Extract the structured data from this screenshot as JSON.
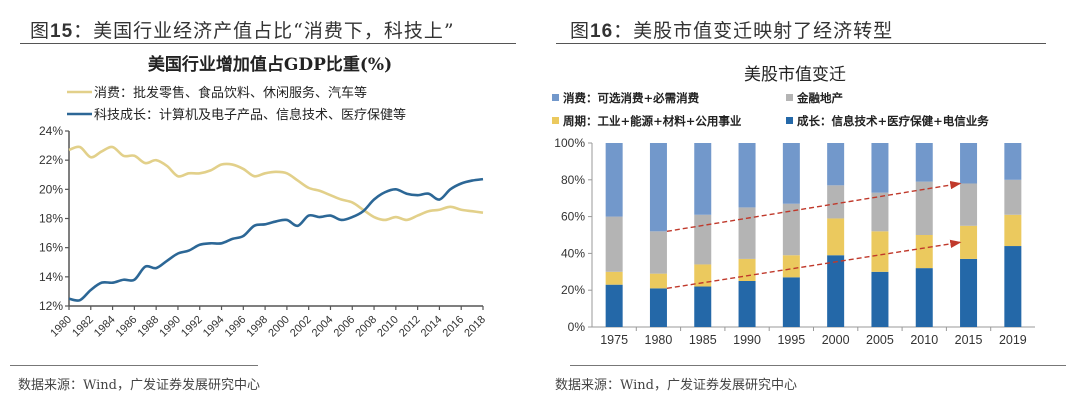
{
  "figures": [
    {
      "number": "15",
      "title_prefix": "图",
      "title_text": "：美国行业经济产值占比“消费下，科技上”",
      "source": "数据来源：Wind，广发证券发展研究中心"
    },
    {
      "number": "16",
      "title_prefix": "图",
      "title_text": "：美股市值变迁映射了经济转型",
      "source": "数据来源：Wind，广发证券发展研究中心"
    }
  ],
  "chart_data": [
    {
      "type": "line",
      "title": "美国行业增加值占GDP比重(%)",
      "xlabel": "",
      "ylabel": "",
      "ylim": [
        12,
        24
      ],
      "yticks": [
        "12%",
        "14%",
        "16%",
        "18%",
        "20%",
        "22%",
        "24%"
      ],
      "xticks": [
        "1980",
        "1982",
        "1984",
        "1986",
        "1988",
        "1990",
        "1992",
        "1994",
        "1996",
        "1998",
        "2000",
        "2002",
        "2004",
        "2006",
        "2008",
        "2010",
        "2012",
        "2014",
        "2016",
        "2018"
      ],
      "grid": false,
      "legend_position": "top-left",
      "x": [
        1980,
        1981,
        1982,
        1983,
        1984,
        1985,
        1986,
        1987,
        1988,
        1989,
        1990,
        1991,
        1992,
        1993,
        1994,
        1995,
        1996,
        1997,
        1998,
        1999,
        2000,
        2001,
        2002,
        2003,
        2004,
        2005,
        2006,
        2007,
        2008,
        2009,
        2010,
        2011,
        2012,
        2013,
        2014,
        2015,
        2016,
        2017,
        2018
      ],
      "series": [
        {
          "name": "消费：批发零售、食品饮料、休闲服务、汽车等",
          "color": "#E2D08A",
          "values": [
            22.7,
            22.9,
            22.2,
            22.6,
            22.9,
            22.3,
            22.3,
            21.8,
            22.0,
            21.6,
            20.9,
            21.1,
            21.1,
            21.3,
            21.7,
            21.7,
            21.4,
            20.9,
            21.1,
            21.2,
            21.1,
            20.6,
            20.1,
            19.9,
            19.6,
            19.3,
            19.1,
            18.6,
            18.1,
            17.9,
            18.1,
            17.9,
            18.2,
            18.5,
            18.6,
            18.8,
            18.6,
            18.5,
            18.4
          ]
        },
        {
          "name": "科技成长：计算机及电子产品、信息技术、医疗保健等",
          "color": "#2C6796",
          "values": [
            12.5,
            12.4,
            13.1,
            13.6,
            13.6,
            13.8,
            13.8,
            14.7,
            14.6,
            15.1,
            15.6,
            15.8,
            16.2,
            16.3,
            16.3,
            16.6,
            16.8,
            17.5,
            17.6,
            17.8,
            17.9,
            17.5,
            18.2,
            18.1,
            18.2,
            17.9,
            18.1,
            18.5,
            19.3,
            19.8,
            20.0,
            19.7,
            19.6,
            19.7,
            19.3,
            20.0,
            20.4,
            20.6,
            20.7
          ]
        }
      ]
    },
    {
      "type": "bar",
      "stacked": true,
      "title": "美股市值变迁",
      "xlabel": "",
      "ylabel": "",
      "ylim": [
        0,
        100
      ],
      "yticks": [
        "0%",
        "20%",
        "40%",
        "60%",
        "80%",
        "100%"
      ],
      "categories": [
        "1975",
        "1980",
        "1985",
        "1990",
        "1995",
        "2000",
        "2005",
        "2010",
        "2015",
        "2019"
      ],
      "grid": false,
      "legend_position": "top",
      "series": [
        {
          "name": "成长：信息技术+医疗保健+电信业务",
          "color": "#2468A8",
          "values": [
            23,
            21,
            22,
            25,
            27,
            39,
            30,
            32,
            37,
            44
          ]
        },
        {
          "name": "周期：工业+能源+材料+公用事业",
          "color": "#EBC95E",
          "values": [
            7,
            8,
            12,
            12,
            12,
            20,
            22,
            18,
            18,
            17
          ]
        },
        {
          "name": "金融地产",
          "color": "#B4B4B4",
          "values": [
            30,
            23,
            27,
            28,
            28,
            18,
            21,
            29,
            23,
            19
          ]
        },
        {
          "name": "消费：可选消费+必需消费",
          "color": "#7298CB",
          "values": [
            40,
            48,
            39,
            35,
            33,
            23,
            27,
            21,
            22,
            20
          ]
        }
      ],
      "legend_order": [
        "消费：可选消费+必需消费",
        "金融地产",
        "周期：工业+能源+材料+公用事业",
        "成长：信息技术+医疗保健+电信业务"
      ],
      "annotations": [
        {
          "type": "dashed-arrow",
          "color": "#C0392B",
          "from": [
            "1980",
            52
          ],
          "to": [
            "2015",
            78
          ]
        },
        {
          "type": "dashed-arrow",
          "color": "#C0392B",
          "from": [
            "1980",
            21
          ],
          "to": [
            "2015",
            46
          ]
        }
      ]
    }
  ]
}
